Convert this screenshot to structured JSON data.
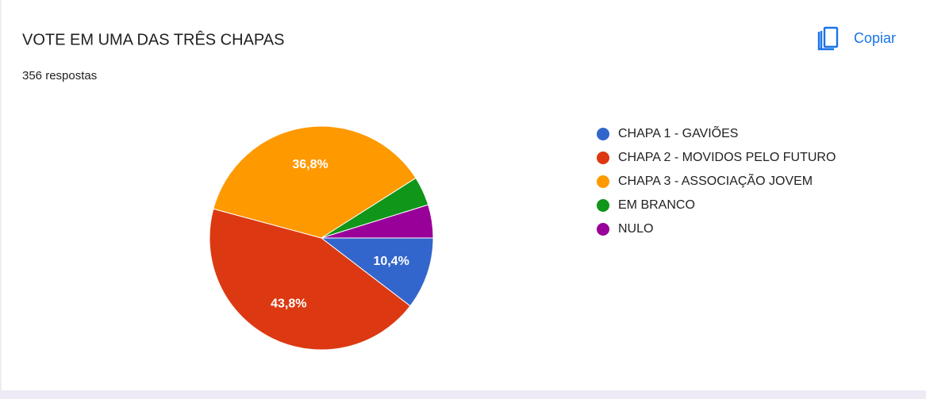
{
  "copy_button": "Copiar",
  "chart_data": {
    "type": "pie",
    "title": "VOTE EM UMA DAS TRÊS CHAPAS",
    "subtitle": "356 respostas",
    "categories": [
      "CHAPA 1 - GAVIÕES",
      "CHAPA 2 - MOVIDOS PELO FUTURO",
      "CHAPA 3 - ASSOCIAÇÃO JOVEM",
      "EM BRANCO",
      "NULO"
    ],
    "values": [
      10.4,
      43.8,
      36.8,
      4.2,
      4.8
    ],
    "value_labels": [
      "10,4%",
      "43,8%",
      "36,8%",
      null,
      null
    ],
    "colors": [
      "#3366cc",
      "#dc3912",
      "#ff9900",
      "#109618",
      "#990099"
    ],
    "legend": "right"
  }
}
